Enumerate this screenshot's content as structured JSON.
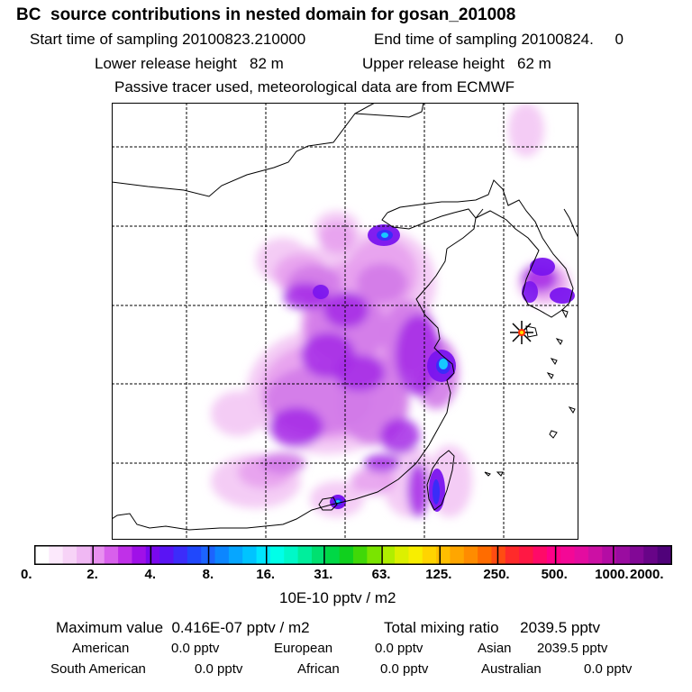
{
  "header": {
    "title": "BC  source contributions in nested domain for gosan_201008",
    "start_label": "Start time of sampling 20100823.210000",
    "end_label": "End time of sampling 20100824.     0",
    "lower_label": "Lower release height   82 m",
    "upper_label": "Upper release height   62 m",
    "note": "Passive tracer used, meteorological data are from ECMWF"
  },
  "colorbar": {
    "ticks": [
      "0.",
      "2.",
      "4.",
      "8.",
      "16.",
      "31.",
      "63.",
      "125.",
      "250.",
      "500.",
      "1000.",
      "2000."
    ],
    "unit": "10E-10 pptv / m2",
    "colors": [
      "#ffffff",
      "#fce9fc",
      "#f7d3f7",
      "#f0b8f3",
      "#e890f0",
      "#d860ec",
      "#c030e8",
      "#a010e8",
      "#7a08ee",
      "#5a14f4",
      "#3c2cfa",
      "#2048fc",
      "#1c64fe",
      "#0c86ff",
      "#06a6ff",
      "#00c4ff",
      "#00e6ff",
      "#00ffe8",
      "#00f8c8",
      "#00ee9c",
      "#00e070",
      "#00d846",
      "#10d01e",
      "#40d808",
      "#7ae400",
      "#b0ee00",
      "#dcf000",
      "#f8ee00",
      "#ffd400",
      "#ffbe00",
      "#ffa600",
      "#ff8c00",
      "#ff6c00",
      "#ff4c12",
      "#ff2a2a",
      "#ff1844",
      "#ff0a68",
      "#ff0088",
      "#f40896",
      "#e40ca0",
      "#cc10a4",
      "#b40ca4",
      "#9a0ca0",
      "#820896",
      "#680488",
      "#50027a"
    ]
  },
  "stats": {
    "max_label": "Maximum value  0.416E-07 pptv / m2",
    "total_label": "Total mixing ratio     2039.5 pptv"
  },
  "regions": [
    {
      "name": "American",
      "value": "0.0 pptv"
    },
    {
      "name": "European",
      "value": "0.0 pptv"
    },
    {
      "name": "Asian",
      "value": "2039.5 pptv"
    },
    {
      "name": "South American",
      "value": "0.0 pptv"
    },
    {
      "name": "African",
      "value": "0.0 pptv"
    },
    {
      "name": "Australian",
      "value": "0.0 pptv"
    }
  ],
  "map": {
    "receptor_marker": "star-marker",
    "palette": {
      "light": "#f3c9f4",
      "pink": "#e7a0ee",
      "mid": "#d27ae8",
      "purple": "#a428e6",
      "violet": "#7a14ee",
      "blue": "#3a2cf8",
      "cyan": "#16c8ff"
    }
  }
}
